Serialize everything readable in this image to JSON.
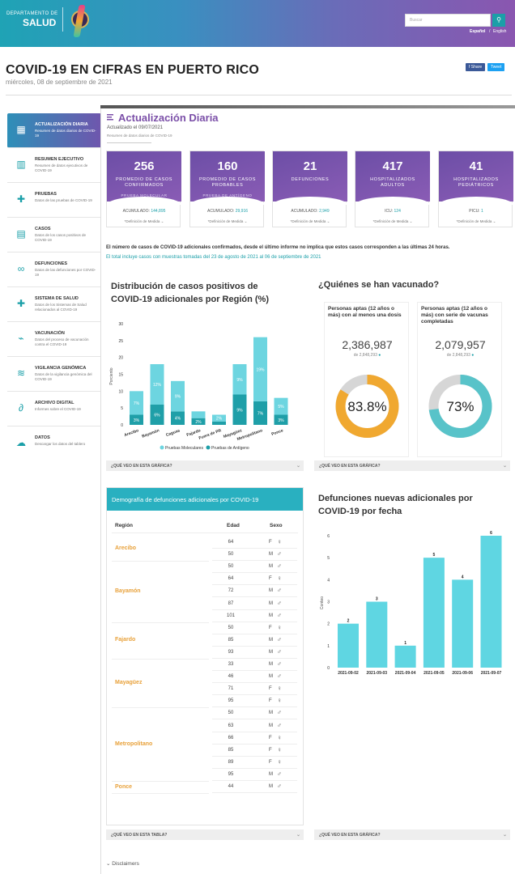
{
  "header": {
    "dept_line": "DEPARTAMENTO DE",
    "dept_name": "SALUD",
    "search_placeholder": "Buscar",
    "lang_es": "Español",
    "lang_sep": "/",
    "lang_en": "English"
  },
  "page": {
    "title": "COVID-19 EN CIFRAS EN PUERTO RICO",
    "date": "miércoles, 08 de septiembre de 2021",
    "share_fb": "f Share",
    "share_tw": "Tweet"
  },
  "sidebar": {
    "items": [
      {
        "title": "ACTUALIZACIÓN DIARIA",
        "desc": "Resumen de datos diarios de COVID-19",
        "icon": "calendar-icon"
      },
      {
        "title": "RESUMEN EJECUTIVO",
        "desc": "Resumen de datos ejecutivos de COVID-19",
        "icon": "bar-chart-icon"
      },
      {
        "title": "PRUEBAS",
        "desc": "Datos de las pruebas de COVID-19",
        "icon": "medical-kit-icon"
      },
      {
        "title": "CASOS",
        "desc": "Datos de los casos positivos de COVID-19",
        "icon": "clipboard-icon"
      },
      {
        "title": "DEFUNCIONES",
        "desc": "Datos de las defunciones por COVID-19",
        "icon": "ribbon-icon"
      },
      {
        "title": "SISTEMA DE SALUD",
        "desc": "Datos de los Sistemas de Salud relacionados al COVID-19",
        "icon": "hospital-cross-icon"
      },
      {
        "title": "VACUNACIÓN",
        "desc": "Datos del proceso de vacunación contra el COVID-19",
        "icon": "syringe-icon"
      },
      {
        "title": "VIGILANCIA GENÓMICA",
        "desc": "Datos de la vigilancia genómica del COVID-19",
        "icon": "dna-icon"
      },
      {
        "title": "ARCHIVO DIGITAL",
        "desc": "Informes sobre el COVID-19",
        "icon": "paperclip-icon"
      },
      {
        "title": "DATOS",
        "desc": "Descargar los datos del tablero",
        "icon": "cloud-download-icon"
      }
    ]
  },
  "update": {
    "heading": "Actualización Diaria",
    "updated": "Actualizado el 09/07/2021",
    "summary": "Resumen de datos diarios de COVID-19"
  },
  "cards": [
    {
      "value": "256",
      "label": "PROMEDIO DE CASOS CONFIRMADOS",
      "sub": "PRUEBA MOLECULAR",
      "acc_label": "ACUMULADO:",
      "acc_value": "144,895",
      "def": "*Definición de Medida ⌄"
    },
    {
      "value": "160",
      "label": "PROMEDIO DE CASOS PROBABLES",
      "sub": "PRUEBA DE ANTÍGENO",
      "acc_label": "ACUMULADO:",
      "acc_value": "29,916",
      "def": "*Definición de Medida ⌄"
    },
    {
      "value": "21",
      "label": "DEFUNCIONES",
      "sub": "",
      "acc_label": "ACUMULADO:",
      "acc_value": "2,949",
      "def": "*Definición de Medida ⌄"
    },
    {
      "value": "417",
      "label": "HOSPITALIZADOS ADULTOS",
      "sub": "",
      "acc_label": "ICU:",
      "acc_value": "124",
      "def": "*Definición de Medida ⌄"
    },
    {
      "value": "41",
      "label": "HOSPITALIZADOS PEDIÁTRICOS",
      "sub": "",
      "acc_label": "PICU:",
      "acc_value": "1",
      "def": "*Definición de Medida ⌄"
    }
  ],
  "notes": {
    "line1": "El número de casos de COVID-19 adicionales confirmados, desde el último informe no implica que estos casos corresponden a las últimas 24 horas.",
    "line2": "El total incluye casos con muestras tomadas del 23 de agosto de 2021 al 06 de septiembre de 2021"
  },
  "region_chart": {
    "heading_1": "Distribución de casos positivos de",
    "heading_2": "COVID-19 adicionales por Región (%)",
    "question": "¿QUÉ VEO EN ESTA GRÁFICA?"
  },
  "vaccine": {
    "heading": "¿Quiénes se han vacunado?",
    "question": "¿QUÉ VEO EN ESTA GRÁFICA?",
    "boxes": [
      {
        "title": "Personas aptas (12 años o más) con al menos una dosis",
        "value": "2,386,987",
        "of": "de 2,848,293",
        "pct_label": "83.8%",
        "pct": 83.8,
        "color": "#f0a830"
      },
      {
        "title": "Personas aptas (12 años o más) con serie de vacunas completadas",
        "value": "2,079,957",
        "of": "de 2,848,293",
        "pct_label": "73%",
        "pct": 73,
        "color": "#58c3c9"
      }
    ]
  },
  "demografia": {
    "heading": "Demografía de defunciones adicionales por COVID-19",
    "col_region": "Región",
    "col_edad": "Edad",
    "col_sexo": "Sexo",
    "question": "¿QUÉ VEO EN ESTA TABLA?",
    "groups": [
      {
        "region": "Arecibo",
        "rows": [
          [
            "64",
            "F"
          ],
          [
            "50",
            "M"
          ]
        ]
      },
      {
        "region": "Bayamón",
        "rows": [
          [
            "50",
            "M"
          ],
          [
            "64",
            "F"
          ],
          [
            "72",
            "M"
          ],
          [
            "87",
            "M"
          ],
          [
            "101",
            "M"
          ]
        ]
      },
      {
        "region": "Fajardo",
        "rows": [
          [
            "50",
            "F"
          ],
          [
            "85",
            "M"
          ],
          [
            "93",
            "M"
          ]
        ]
      },
      {
        "region": "Mayagüez",
        "rows": [
          [
            "33",
            "M"
          ],
          [
            "46",
            "M"
          ],
          [
            "71",
            "F"
          ],
          [
            "95",
            "F"
          ]
        ]
      },
      {
        "region": "Metropolitano",
        "rows": [
          [
            "50",
            "M"
          ],
          [
            "63",
            "M"
          ],
          [
            "66",
            "F"
          ],
          [
            "85",
            "F"
          ],
          [
            "89",
            "F"
          ],
          [
            "95",
            "M"
          ]
        ]
      },
      {
        "region": "Ponce",
        "rows": [
          [
            "44",
            "M"
          ]
        ]
      }
    ]
  },
  "deaths_chart": {
    "heading_1": "Defunciones nuevas adicionales por",
    "heading_2": "COVID-19 por fecha",
    "question": "¿QUÉ VEO EN ESTA GRÁFICA?"
  },
  "disclaimers": "Disclaimers",
  "chart_data": [
    {
      "type": "bar",
      "stacked": true,
      "categories": [
        "Arecibo",
        "Bayamón",
        "Caguas",
        "Fajardo",
        "Fuera de PR",
        "Mayagüez",
        "Metropolitano",
        "Ponce"
      ],
      "series": [
        {
          "name": "Pruebas Moleculares",
          "values": [
            7,
            12,
            9,
            2,
            2,
            9,
            19,
            5
          ],
          "labels": [
            "7%",
            "12%",
            "9%",
            "",
            "2%",
            "9%",
            "19%",
            "5%"
          ],
          "color": "#6dd5e0"
        },
        {
          "name": "Pruebas de Antígeno",
          "values": [
            3,
            6,
            4,
            2,
            1,
            9,
            7,
            3
          ],
          "labels": [
            "3%",
            "6%",
            "4%",
            "2%",
            "",
            "9%",
            "7%",
            "3%"
          ],
          "color": "#1f9fa8"
        }
      ],
      "ylabel": "Porciento",
      "ylim": [
        0,
        30
      ],
      "yticks": [
        0,
        5,
        10,
        15,
        20,
        25,
        30
      ]
    },
    {
      "type": "bar",
      "categories": [
        "2021-09-02",
        "2021-09-03",
        "2021-09-04",
        "2021-09-05",
        "2021-09-06",
        "2021-09-07"
      ],
      "values": [
        2,
        3,
        1,
        5,
        4,
        6
      ],
      "ylabel": "Conteo",
      "ylim": [
        0,
        6
      ],
      "yticks": [
        0,
        1,
        2,
        3,
        4,
        5,
        6
      ],
      "color": "#5fd6e2"
    }
  ]
}
